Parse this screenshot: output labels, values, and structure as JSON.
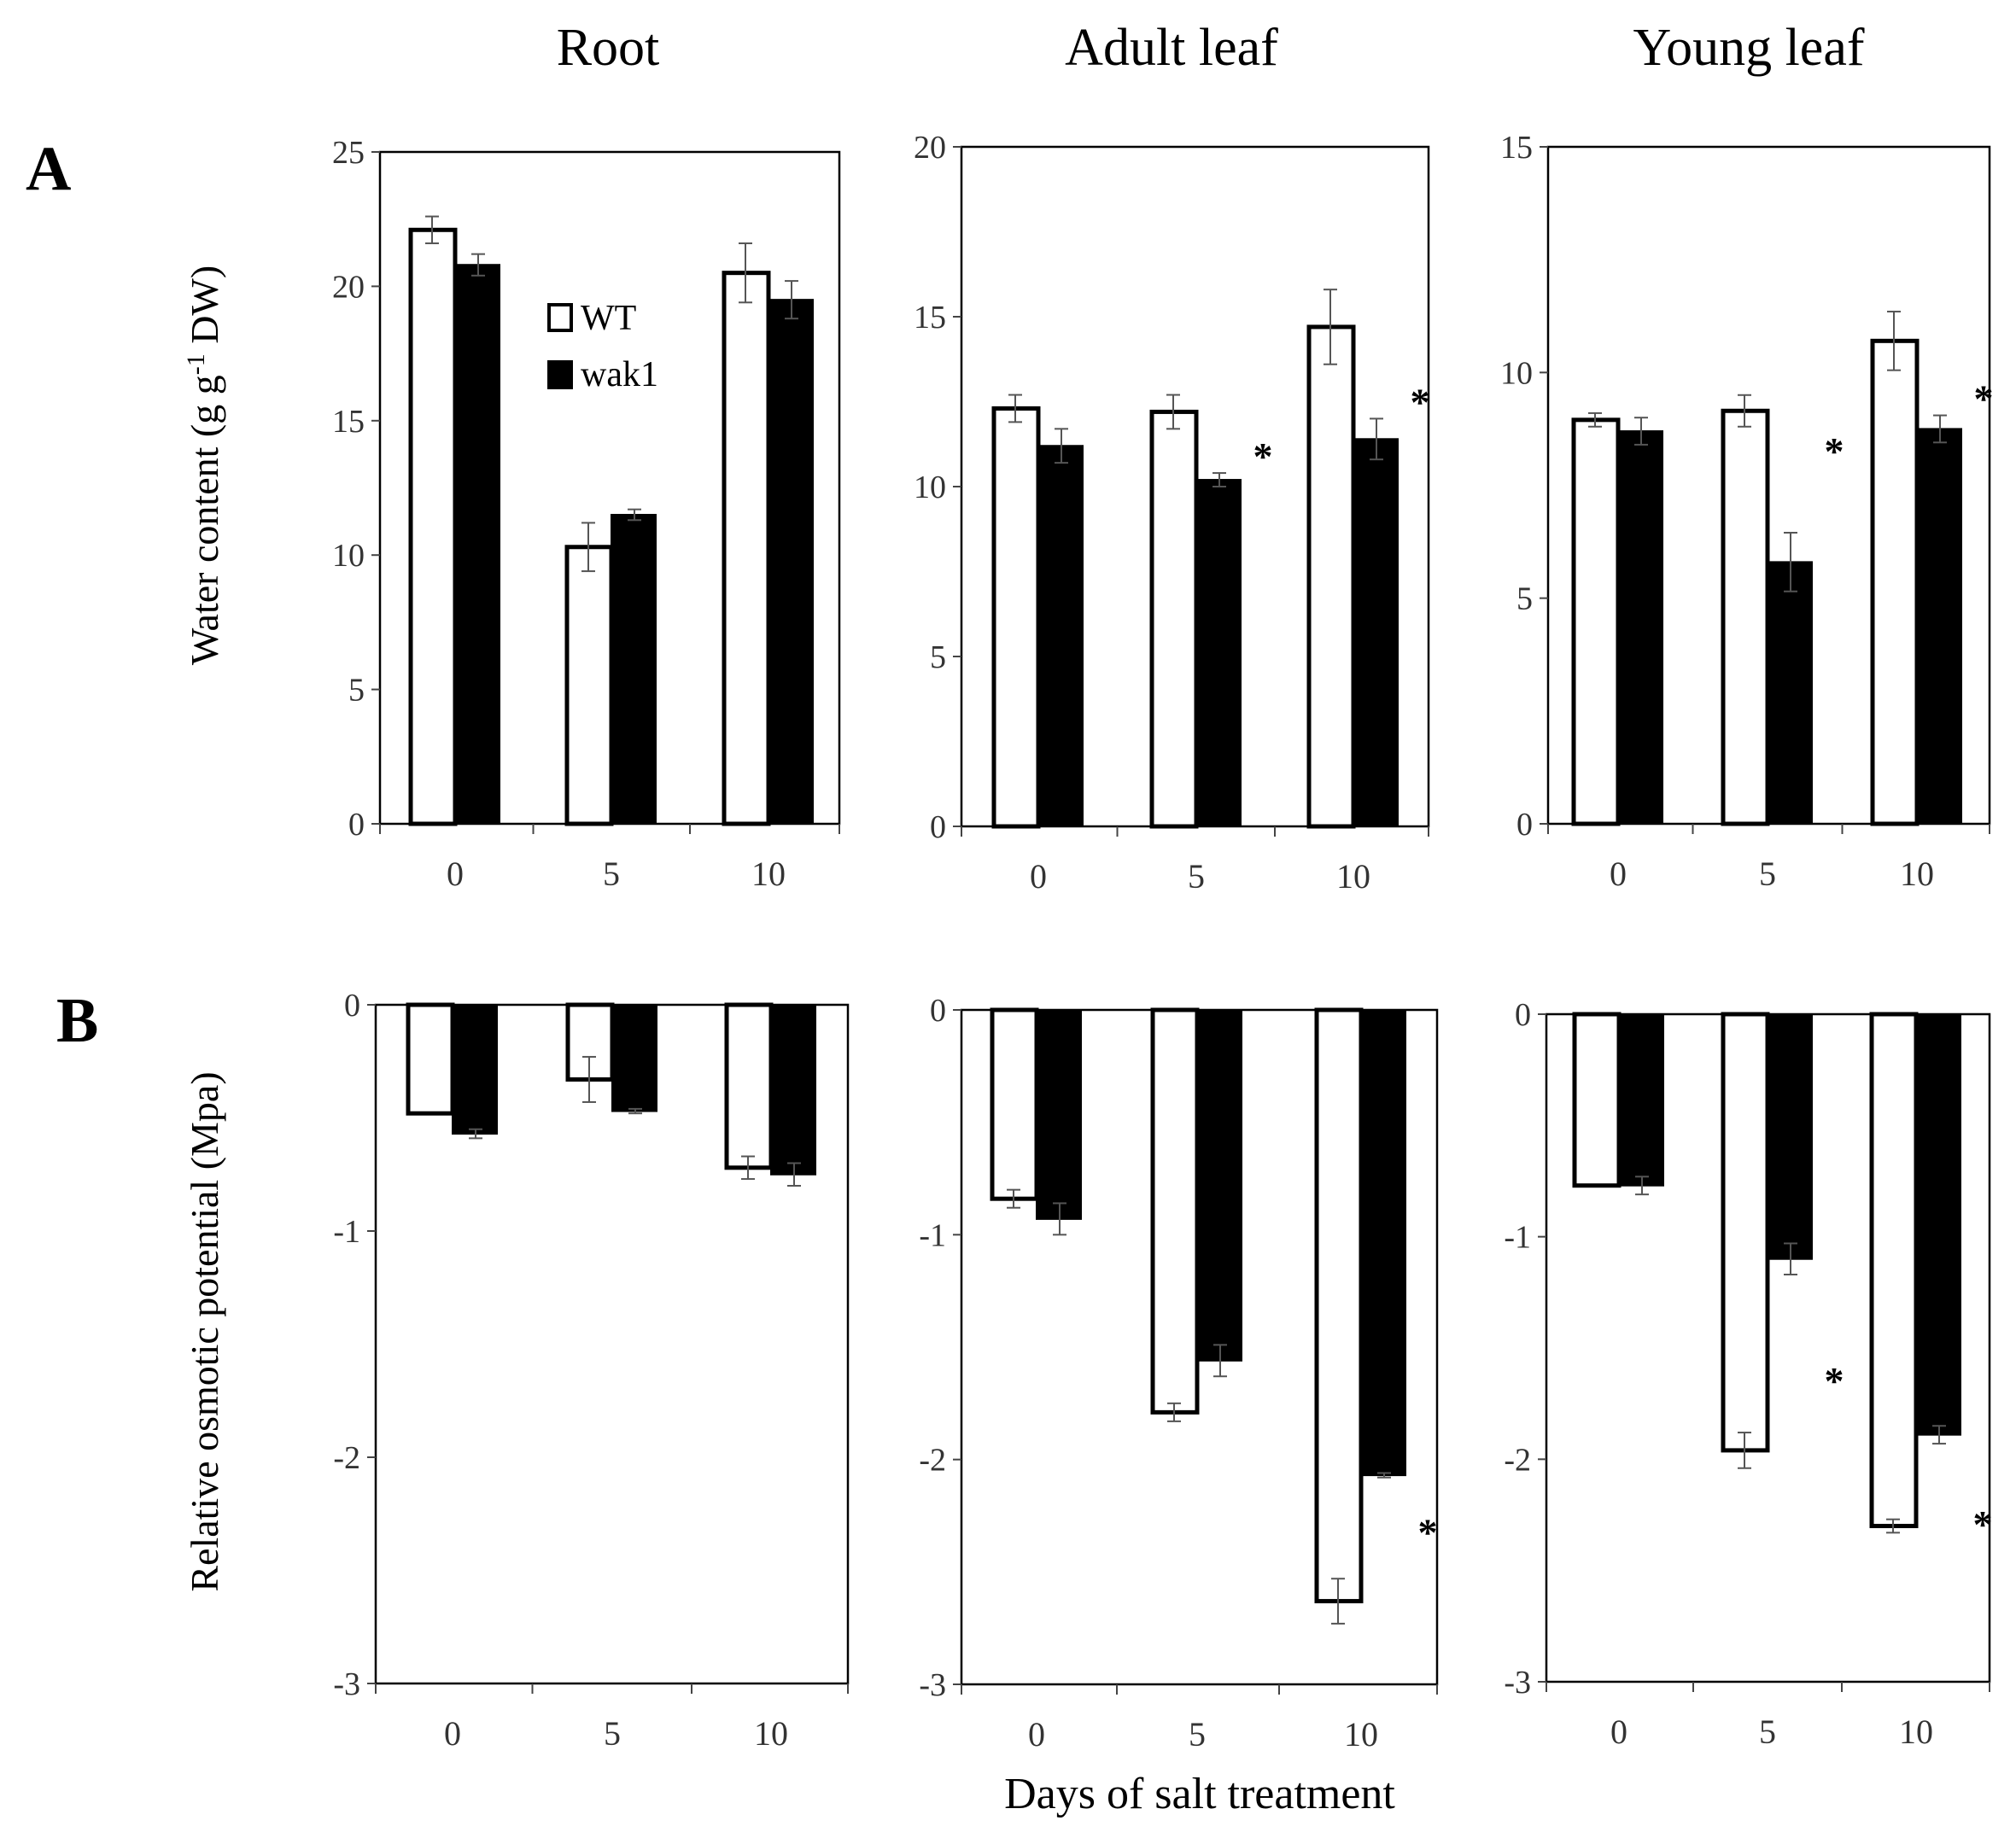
{
  "column_titles": [
    "Root",
    "Adult leaf",
    "Young leaf"
  ],
  "row_labels": [
    "A",
    "B"
  ],
  "row_ylabels": [
    "Water content (g g-1 DW)",
    "Relative osmotic potential (Mpa)"
  ],
  "ylabel_a": {
    "main": "Water content (g g",
    "sup": "-1",
    "tail": " DW)"
  },
  "xlabel": "Days of salt treatment",
  "legend": {
    "wt": "WT",
    "wak1": "wak1"
  },
  "colors": {
    "wt_fill": "#ffffff",
    "wak1_fill": "#000000",
    "stroke": "#000000",
    "axis": "#444444"
  },
  "chart_data": [
    {
      "type": "bar",
      "panel": "A",
      "column": "Root",
      "categories": [
        "0",
        "5",
        "10"
      ],
      "ylim": [
        0,
        25
      ],
      "yticks": [
        "0",
        "5",
        "10",
        "15",
        "20",
        "25"
      ],
      "series": [
        {
          "name": "WT",
          "values": [
            22.1,
            10.3,
            20.5
          ],
          "errors": [
            0.5,
            0.9,
            1.1
          ]
        },
        {
          "name": "wak1",
          "values": [
            20.8,
            11.5,
            19.5
          ],
          "errors": [
            0.4,
            0.2,
            0.7
          ]
        }
      ],
      "significance": [
        {
          "category": "",
          "series": "",
          "mark": ""
        }
      ]
    },
    {
      "type": "bar",
      "panel": "A",
      "column": "Adult leaf",
      "categories": [
        "0",
        "5",
        "10"
      ],
      "ylim": [
        0,
        20
      ],
      "yticks": [
        "0",
        "5",
        "10",
        "15",
        "20"
      ],
      "series": [
        {
          "name": "WT",
          "values": [
            12.3,
            12.2,
            14.7
          ],
          "errors": [
            0.4,
            0.5,
            1.1
          ]
        },
        {
          "name": "wak1",
          "values": [
            11.2,
            10.2,
            11.4
          ],
          "errors": [
            0.5,
            0.2,
            0.6
          ]
        }
      ],
      "significance": [
        {
          "category": "5",
          "series": "wak1",
          "mark": "*"
        },
        {
          "category": "10",
          "series": "wak1",
          "mark": "*"
        }
      ]
    },
    {
      "type": "bar",
      "panel": "A",
      "column": "Young leaf",
      "categories": [
        "0",
        "5",
        "10"
      ],
      "ylim": [
        0,
        15
      ],
      "yticks": [
        "0",
        "5",
        "10",
        "15"
      ],
      "series": [
        {
          "name": "WT",
          "values": [
            8.95,
            9.15,
            10.7
          ],
          "errors": [
            0.15,
            0.35,
            0.65
          ]
        },
        {
          "name": "wak1",
          "values": [
            8.7,
            5.8,
            8.75
          ],
          "errors": [
            0.3,
            0.65,
            0.3
          ]
        }
      ],
      "significance": [
        {
          "category": "5",
          "series": "wak1",
          "mark": "*"
        },
        {
          "category": "10",
          "series": "wak1",
          "mark": "*"
        }
      ]
    },
    {
      "type": "bar",
      "panel": "B",
      "column": "Root",
      "categories": [
        "0",
        "5",
        "10"
      ],
      "ylim": [
        -3,
        0
      ],
      "yticks": [
        "-3",
        "-2",
        "-1",
        "0"
      ],
      "series": [
        {
          "name": "WT",
          "values": [
            -0.48,
            -0.33,
            -0.72
          ],
          "errors": [
            0,
            0.1,
            0.05
          ]
        },
        {
          "name": "wak1",
          "values": [
            -0.57,
            -0.47,
            -0.75
          ],
          "errors": [
            0.02,
            0.01,
            0.05
          ]
        }
      ],
      "significance": []
    },
    {
      "type": "bar",
      "panel": "B",
      "column": "Adult leaf",
      "categories": [
        "0",
        "5",
        "10"
      ],
      "ylim": [
        -3,
        0
      ],
      "yticks": [
        "-3",
        "-2",
        "-1",
        "0"
      ],
      "series": [
        {
          "name": "WT",
          "values": [
            -0.84,
            -1.79,
            -2.63
          ],
          "errors": [
            0.04,
            0.04,
            0.1
          ]
        },
        {
          "name": "wak1",
          "values": [
            -0.93,
            -1.56,
            -2.07
          ],
          "errors": [
            0.07,
            0.07,
            0.01
          ]
        }
      ],
      "significance": [
        {
          "category": "10",
          "series": "wak1",
          "mark": "*"
        }
      ]
    },
    {
      "type": "bar",
      "panel": "B",
      "column": "Young leaf",
      "categories": [
        "0",
        "5",
        "10"
      ],
      "ylim": [
        -3,
        0
      ],
      "yticks": [
        "-3",
        "-2",
        "-1",
        "0"
      ],
      "series": [
        {
          "name": "WT",
          "values": [
            -0.77,
            -1.96,
            -2.3
          ],
          "errors": [
            0,
            0.08,
            0.03
          ]
        },
        {
          "name": "wak1",
          "values": [
            -0.77,
            -1.1,
            -1.89
          ],
          "errors": [
            0.04,
            0.07,
            0.04
          ]
        }
      ],
      "significance": [
        {
          "category": "5",
          "series": "wak1",
          "mark": "*"
        },
        {
          "category": "10",
          "series": "wak1",
          "mark": "*"
        }
      ]
    }
  ]
}
